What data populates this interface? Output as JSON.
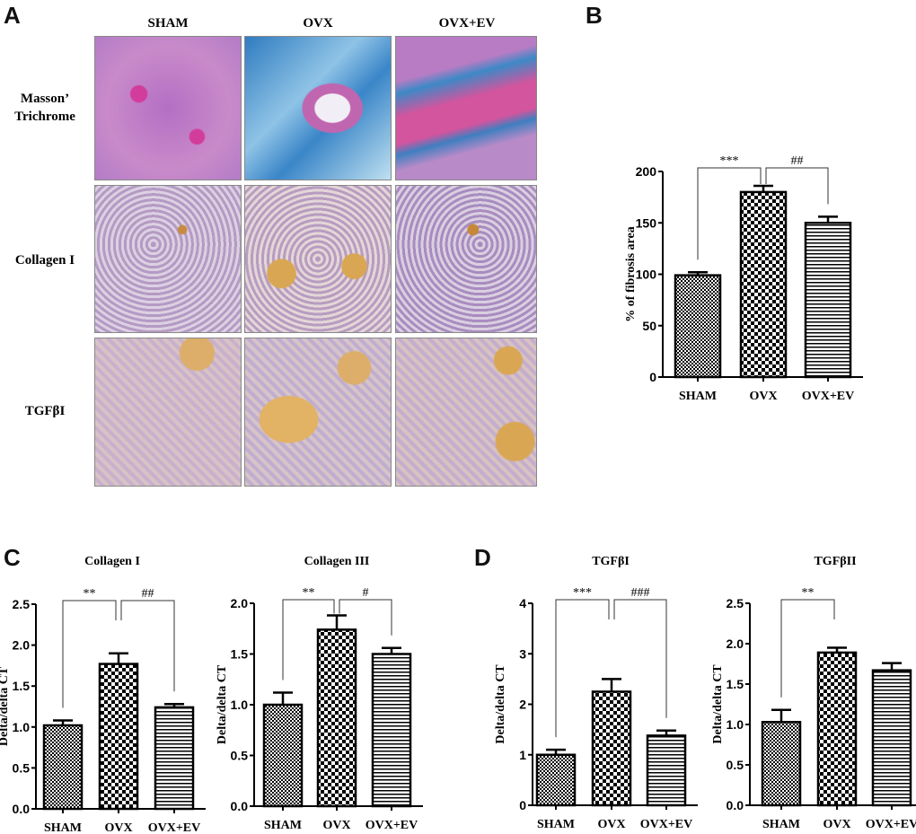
{
  "panels": {
    "a": "A",
    "b": "B",
    "c": "C",
    "d": "D"
  },
  "histology": {
    "columns": [
      "SHAM",
      "OVX",
      "OVX+EV"
    ],
    "rows": [
      "Masson’ Trichrome",
      "Collagen I",
      "TGFβI"
    ]
  },
  "colors": {
    "bar_edge": "#000000",
    "masson_pink": "#c86fb8",
    "masson_blue": "#3f86c4",
    "ihc_purple": "#9a7ab8",
    "ihc_brown": "#d3a65a"
  },
  "chart_data": [
    {
      "id": "b",
      "type": "bar",
      "title": "",
      "ylabel": "% of fibrosis area",
      "categories": [
        "SHAM",
        "OVX",
        "OVX+EV"
      ],
      "values": [
        99,
        180,
        150
      ],
      "errors": [
        3,
        6,
        6
      ],
      "ylim": [
        0,
        200
      ],
      "yticks": [
        "0",
        "50",
        "100",
        "150",
        "200"
      ],
      "significance": [
        {
          "from": 0,
          "to": 1,
          "label": "***"
        },
        {
          "from": 1,
          "to": 2,
          "label": "##"
        }
      ]
    },
    {
      "id": "c1",
      "type": "bar",
      "title": "Collagen I",
      "ylabel": "Delta/delta CT",
      "categories": [
        "SHAM",
        "OVX",
        "OVX+EV"
      ],
      "values": [
        1.02,
        1.77,
        1.24
      ],
      "errors": [
        0.06,
        0.13,
        0.04
      ],
      "ylim": [
        0,
        2.5
      ],
      "yticks": [
        "0.0",
        "0.5",
        "1.0",
        "1.5",
        "2.0",
        "2.5"
      ],
      "significance": [
        {
          "from": 0,
          "to": 1,
          "label": "**"
        },
        {
          "from": 1,
          "to": 2,
          "label": "##"
        }
      ]
    },
    {
      "id": "c2",
      "type": "bar",
      "title": "Collagen III",
      "ylabel": "Delta/delta CT",
      "categories": [
        "SHAM",
        "OVX",
        "OVX+EV"
      ],
      "values": [
        1.0,
        1.74,
        1.5
      ],
      "errors": [
        0.12,
        0.14,
        0.06
      ],
      "ylim": [
        0,
        2.0
      ],
      "yticks": [
        "0.0",
        "0.5",
        "1.0",
        "1.5",
        "2.0"
      ],
      "significance": [
        {
          "from": 0,
          "to": 1,
          "label": "**"
        },
        {
          "from": 1,
          "to": 2,
          "label": "#"
        }
      ]
    },
    {
      "id": "d1",
      "type": "bar",
      "title": "TGFβI",
      "ylabel": "Delta/delta CT",
      "categories": [
        "SHAM",
        "OVX",
        "OVX+EV"
      ],
      "values": [
        1.0,
        2.25,
        1.38
      ],
      "errors": [
        0.1,
        0.25,
        0.1
      ],
      "ylim": [
        0,
        4
      ],
      "yticks": [
        "0",
        "1",
        "2",
        "3",
        "4"
      ],
      "significance": [
        {
          "from": 0,
          "to": 1,
          "label": "***"
        },
        {
          "from": 1,
          "to": 2,
          "label": "###"
        }
      ]
    },
    {
      "id": "d2",
      "type": "bar",
      "title": "TGFβII",
      "ylabel": "Delta/delta CT",
      "categories": [
        "SHAM",
        "OVX",
        "OVX+EV"
      ],
      "values": [
        1.03,
        1.89,
        1.67
      ],
      "errors": [
        0.15,
        0.06,
        0.09
      ],
      "ylim": [
        0,
        2.5
      ],
      "yticks": [
        "0.0",
        "0.5",
        "1.0",
        "1.5",
        "2.0",
        "2.5"
      ],
      "significance": [
        {
          "from": 0,
          "to": 1,
          "label": "**"
        }
      ]
    }
  ]
}
